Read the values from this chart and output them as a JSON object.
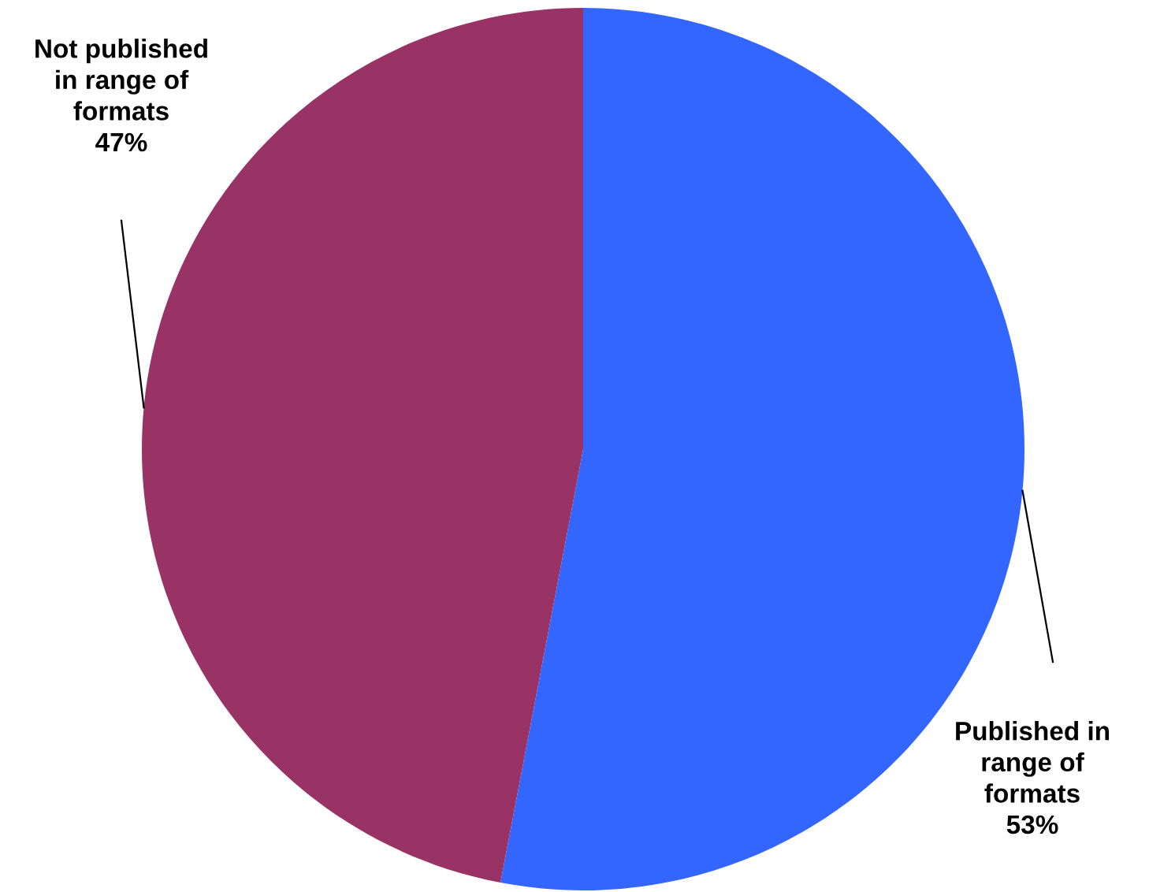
{
  "chart_data": {
    "type": "pie",
    "categories": [
      "Published in\nrange of\nformats",
      "Not published\nin range of\nformats"
    ],
    "values": [
      53,
      47
    ],
    "colors": [
      "#3366ff",
      "#993366"
    ],
    "value_labels": [
      "53%",
      "47%"
    ],
    "legend": false
  }
}
